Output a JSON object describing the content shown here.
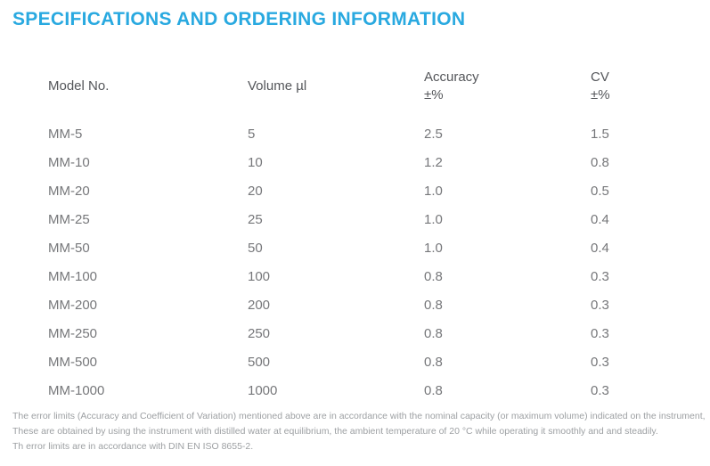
{
  "title": "SPECIFICATIONS AND ORDERING INFORMATION",
  "colors": {
    "accent_blue": "#29A9E0",
    "header_text": "#54565A",
    "row_text": "#76777A",
    "footnote_text": "#9DA0A3",
    "background": "#FFFFFF"
  },
  "table": {
    "columns": [
      {
        "label": "Model No.",
        "sub": ""
      },
      {
        "label": "Volume µl",
        "sub": ""
      },
      {
        "label": "Accuracy",
        "sub": "±%"
      },
      {
        "label": "CV",
        "sub": "±%"
      }
    ],
    "rows": [
      {
        "model": "MM-5",
        "volume": "5",
        "accuracy": "2.5",
        "cv": "1.5"
      },
      {
        "model": "MM-10",
        "volume": "10",
        "accuracy": "1.2",
        "cv": "0.8"
      },
      {
        "model": "MM-20",
        "volume": "20",
        "accuracy": "1.0",
        "cv": "0.5"
      },
      {
        "model": "MM-25",
        "volume": "25",
        "accuracy": "1.0",
        "cv": "0.4"
      },
      {
        "model": "MM-50",
        "volume": "50",
        "accuracy": "1.0",
        "cv": "0.4"
      },
      {
        "model": "MM-100",
        "volume": "100",
        "accuracy": "0.8",
        "cv": "0.3"
      },
      {
        "model": "MM-200",
        "volume": "200",
        "accuracy": "0.8",
        "cv": "0.3"
      },
      {
        "model": "MM-250",
        "volume": "250",
        "accuracy": "0.8",
        "cv": "0.3"
      },
      {
        "model": "MM-500",
        "volume": "500",
        "accuracy": "0.8",
        "cv": "0.3"
      },
      {
        "model": "MM-1000",
        "volume": "1000",
        "accuracy": "0.8",
        "cv": "0.3"
      }
    ]
  },
  "footnotes": [
    "The error limits (Accuracy and Coefficient of Variation) mentioned above are in accordance with the nominal capacity (or maximum volume) indicated on the instrument,",
    "These are obtained by using the instrument with distilled water at equilibrium, the ambient temperature of 20 °C while operating it smoothly and and steadily.",
    "Th error limits are in accordance with DIN EN ISO 8655-2."
  ]
}
